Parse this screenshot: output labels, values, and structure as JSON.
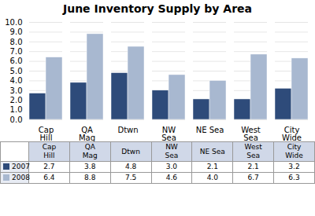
{
  "chart_data": {
    "type": "bar",
    "title": "June Inventory Supply by Area",
    "categories": [
      "Cap\nHill",
      "QA\nMag",
      "Dtwn",
      "NW\nSea",
      "NE Sea",
      "West\nSea",
      "City\nWide"
    ],
    "series": [
      {
        "name": "2007",
        "color": "#2E4B7A",
        "values": [
          2.7,
          3.8,
          4.8,
          3.0,
          2.1,
          2.1,
          3.2
        ],
        "value_labels": [
          "2.7",
          "3.8",
          "4.8",
          "3.0",
          "2.1",
          "2.1",
          "3.2"
        ]
      },
      {
        "name": "2008",
        "color": "#A8B8D0",
        "values": [
          6.4,
          8.8,
          7.5,
          4.6,
          4.0,
          6.7,
          6.3
        ],
        "value_labels": [
          "6.4",
          "8.8",
          "7.5",
          "4.6",
          "4.0",
          "6.7",
          "6.3"
        ]
      }
    ],
    "ylim": [
      0,
      10.0
    ],
    "yticks": [
      {
        "value": 0,
        "label": "0.0"
      },
      {
        "value": 1,
        "label": "1.0"
      },
      {
        "value": 2,
        "label": "2.0"
      },
      {
        "value": 3,
        "label": "3.0"
      },
      {
        "value": 4,
        "label": "4.0"
      },
      {
        "value": 5,
        "label": "5.0"
      },
      {
        "value": 6,
        "label": "6.0"
      },
      {
        "value": 7,
        "label": "7.0"
      },
      {
        "value": 8,
        "label": "8.0"
      },
      {
        "value": 9,
        "label": "9.0"
      },
      {
        "value": 10,
        "label": "10.0"
      }
    ],
    "grid": true,
    "legend": "bottom",
    "data_labels": true
  }
}
